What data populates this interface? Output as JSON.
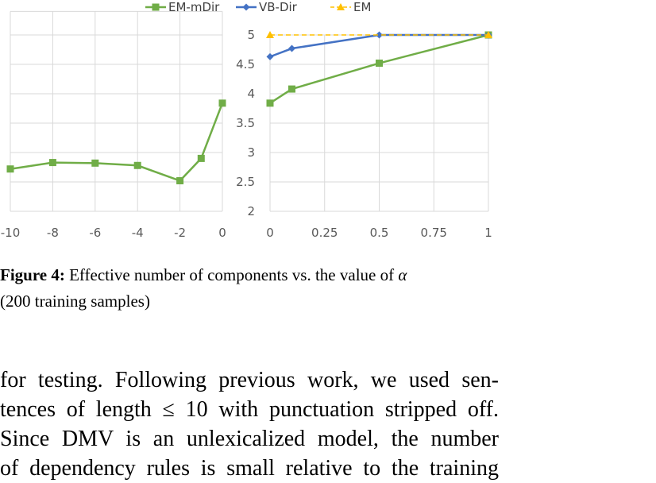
{
  "chart_data": [
    {
      "type": "line",
      "title": "",
      "xlabel": "",
      "ylabel": "",
      "xlim": [
        -10,
        0
      ],
      "ylim": [
        2,
        5.5
      ],
      "grid": true,
      "x_ticks": [
        "-10",
        "-8",
        "-6",
        "-4",
        "-2",
        "0"
      ],
      "series": [
        {
          "name": "EM-mDir",
          "color": "#70AD47",
          "marker": "square",
          "x": [
            -10,
            -8,
            -6,
            -4,
            -2,
            -1,
            0
          ],
          "y": [
            2.72,
            2.83,
            2.82,
            2.78,
            2.52,
            2.9,
            3.84
          ]
        }
      ]
    },
    {
      "type": "line",
      "title": "",
      "xlabel": "",
      "ylabel": "",
      "xlim": [
        0,
        1
      ],
      "ylim": [
        2,
        5
      ],
      "grid": true,
      "x_ticks": [
        "0",
        "0.25",
        "0.5",
        "0.75",
        "1"
      ],
      "y_ticks": [
        "2",
        "2.5",
        "3",
        "3.5",
        "4",
        "4.5",
        "5"
      ],
      "legend_position": "top",
      "series": [
        {
          "name": "EM-mDir",
          "color": "#70AD47",
          "marker": "square",
          "x": [
            0,
            0.1,
            0.5,
            1
          ],
          "y": [
            3.84,
            4.08,
            4.52,
            5.0
          ]
        },
        {
          "name": "VB-Dir",
          "color": "#4472C4",
          "marker": "diamond",
          "x": [
            0,
            0.1,
            0.5,
            1
          ],
          "y": [
            4.63,
            4.77,
            5.0,
            5.0
          ]
        },
        {
          "name": "EM",
          "color": "#FFC000",
          "marker": "triangle",
          "dashed": true,
          "x": [
            0,
            1
          ],
          "y": [
            5.0,
            5.0
          ]
        }
      ]
    }
  ],
  "caption": {
    "label": "Figure 4:",
    "text_before_alpha": "Effective number of components vs. the value of",
    "alpha": "α",
    "line2": "(200 training samples)"
  },
  "body": {
    "lines": [
      "for testing. Following previous work, we used sen-",
      "tences of length ≤ 10 with punctuation stripped off.",
      "Since DMV is an unlexicalized model, the number",
      "of dependency rules is small relative to the training"
    ]
  }
}
